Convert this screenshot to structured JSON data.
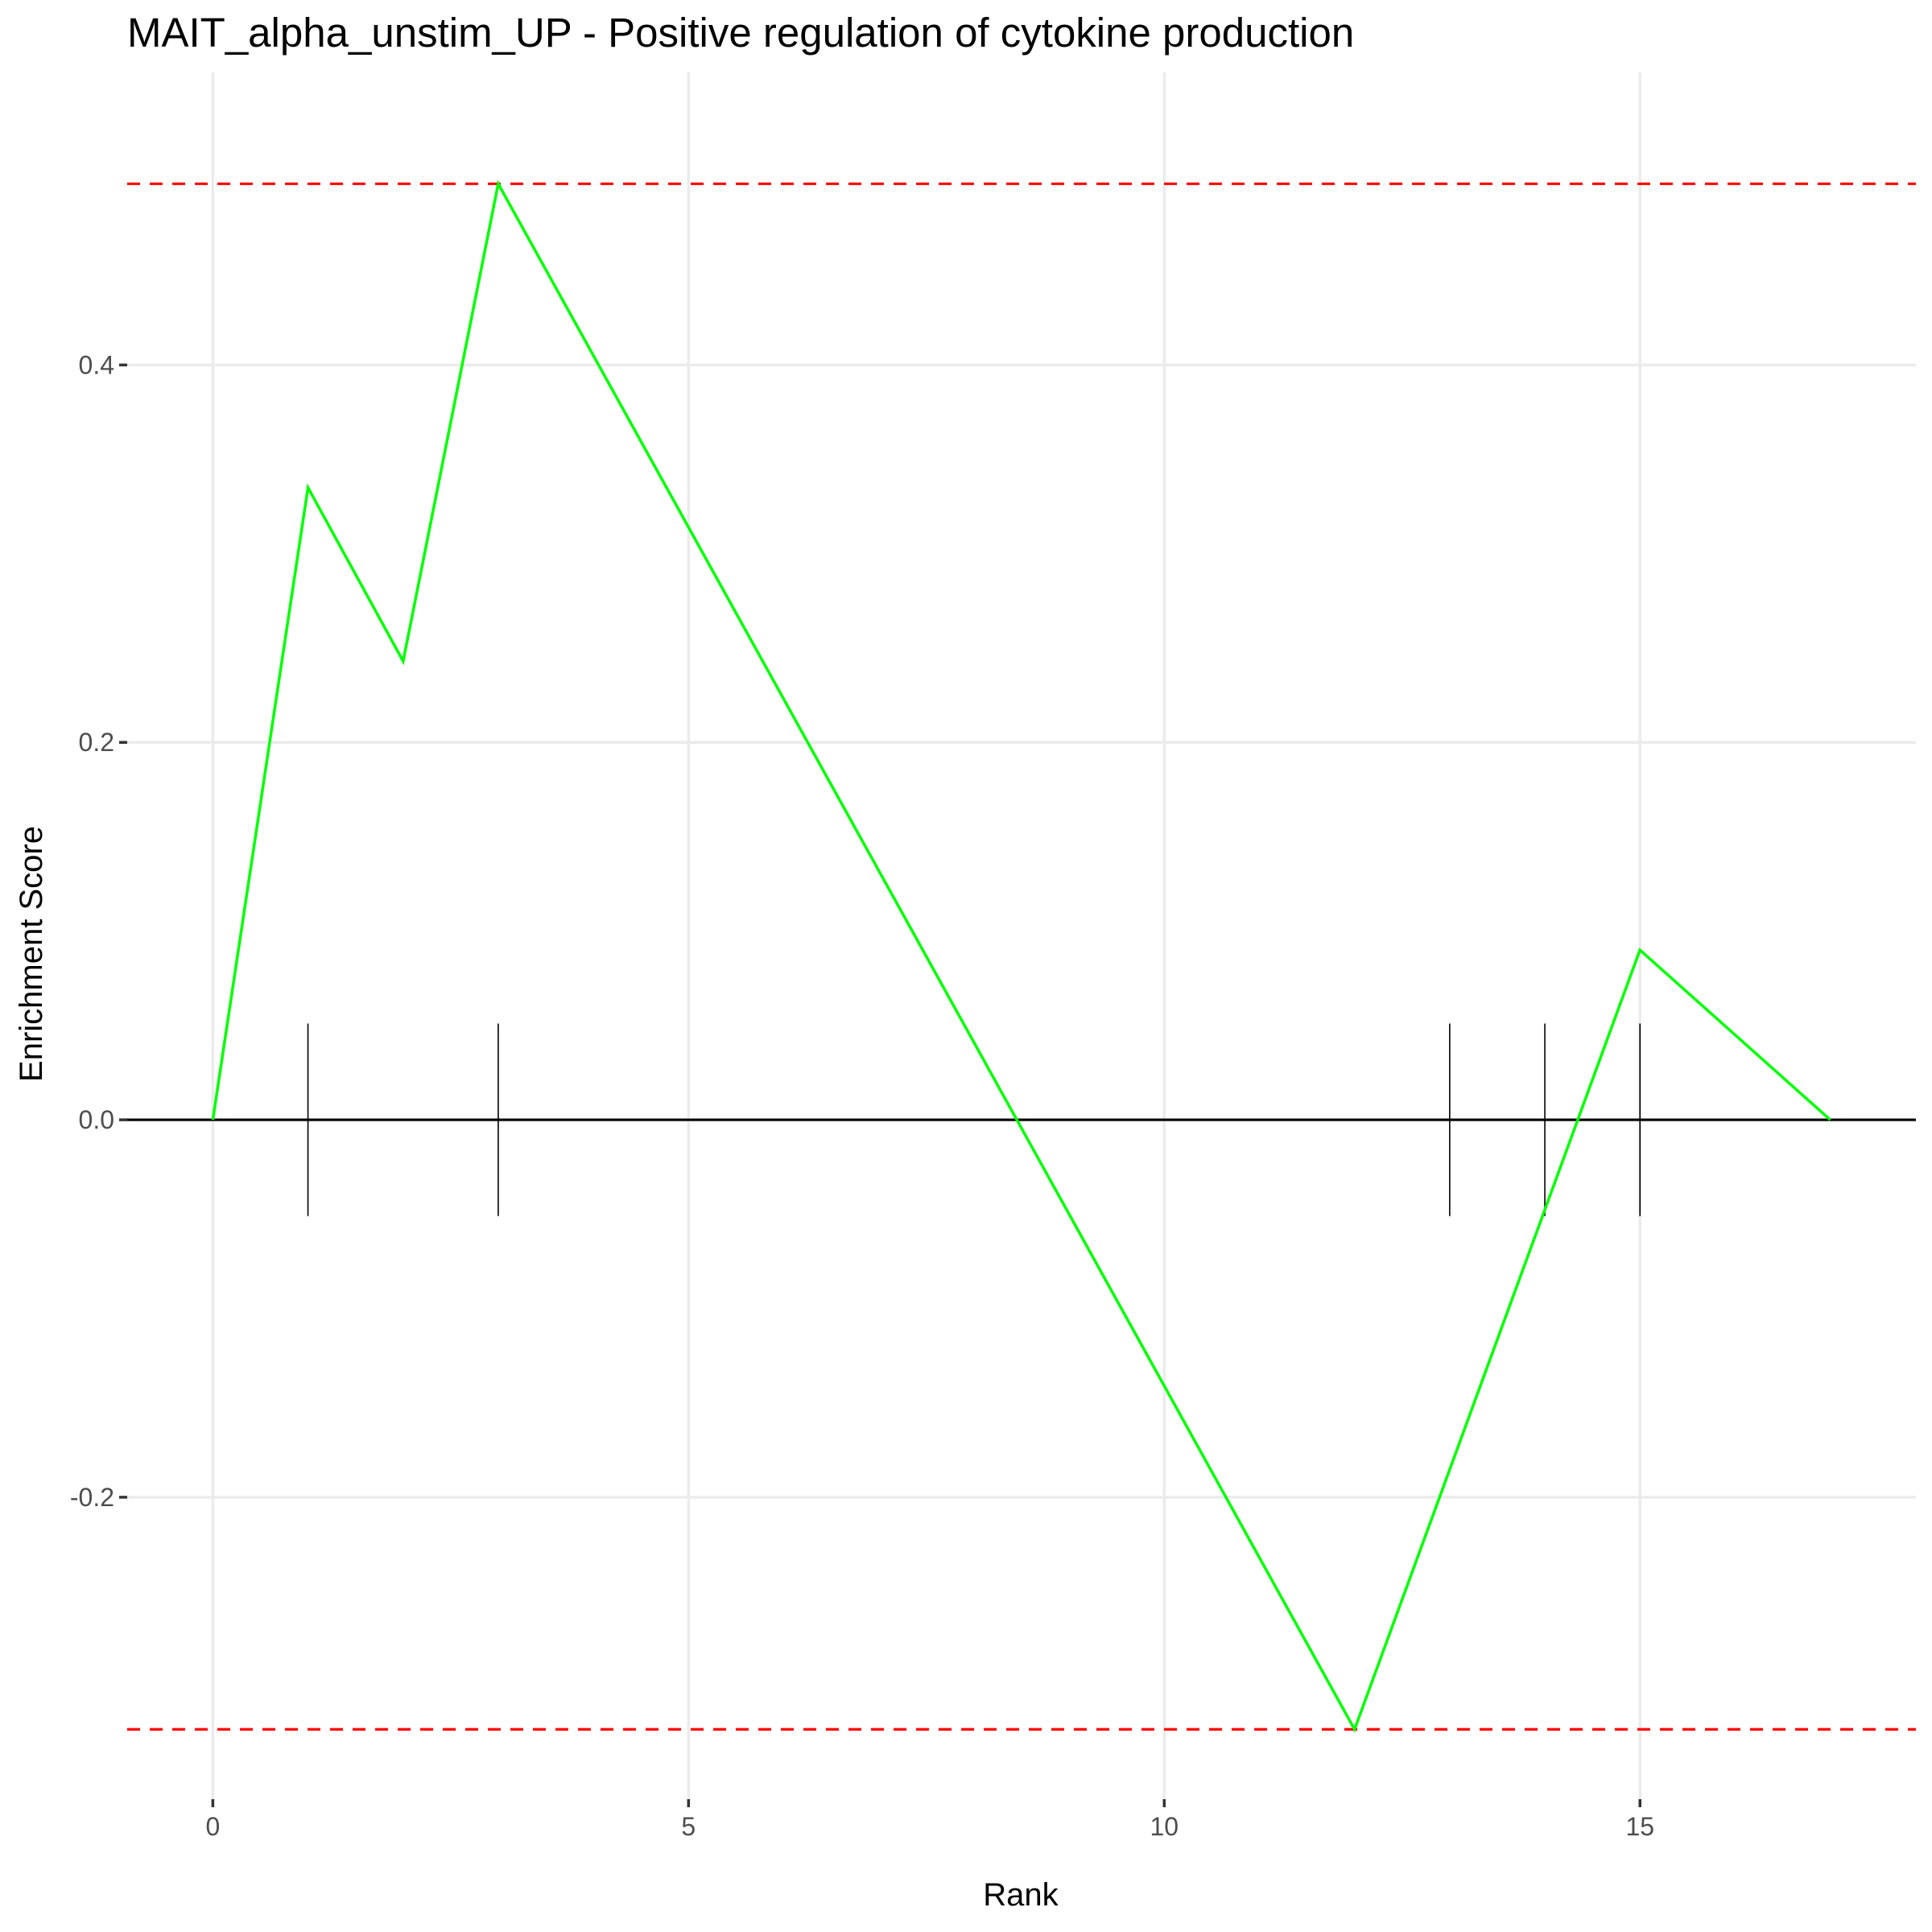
{
  "chart_data": {
    "type": "line",
    "title": "MAIT_alpha_unstim_UP - Positive regulation of cytokine production",
    "xlabel": "Rank",
    "ylabel": "Enrichment Score",
    "xlim": [
      -0.9,
      17.9
    ],
    "ylim": [
      -0.36,
      0.555
    ],
    "x_ticks": [
      0,
      5,
      10,
      15
    ],
    "x_tick_labels": [
      "0",
      "5",
      "10",
      "15"
    ],
    "y_ticks": [
      -0.2,
      0.0,
      0.2,
      0.4
    ],
    "y_tick_labels": [
      "-0.2",
      "0.0",
      "0.2",
      "0.4"
    ],
    "grid": true,
    "series": [
      {
        "color": "#00ff00",
        "x": [
          0,
          1,
          2,
          3,
          12,
          15,
          17
        ],
        "y": [
          0.0,
          0.335,
          0.243,
          0.496,
          -0.323,
          0.09,
          0.0
        ]
      }
    ],
    "hit_ranks": [
      1,
      3,
      13,
      14,
      15
    ],
    "hit_mark_extent": [
      -0.051,
      0.051
    ],
    "reference_lines": [
      {
        "y": 0.496,
        "style": "dashed",
        "color": "#ff0000"
      },
      {
        "y": -0.323,
        "style": "dashed",
        "color": "#ff0000"
      },
      {
        "y": 0.0,
        "style": "solid",
        "color": "#000000"
      }
    ]
  }
}
